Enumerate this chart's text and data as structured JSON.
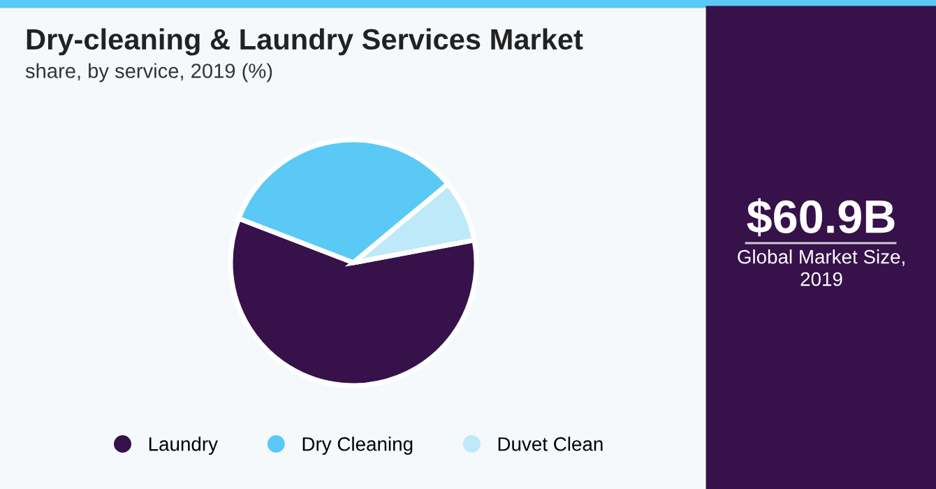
{
  "chart_data": {
    "type": "pie",
    "title": "Dry-cleaning & Laundry Services Market",
    "subtitle": "share, by service, 2019 (%)",
    "categories": [
      "Laundry",
      "Dry Cleaning",
      "Duvet Clean"
    ],
    "values": [
      58.8,
      33.1,
      8.1
    ],
    "colors": [
      "#36114a",
      "#5bc9f6",
      "#bde9f9"
    ],
    "legend": "bottom",
    "annotations": [
      "$60.9B",
      "Global Market Size,\n2019"
    ]
  }
}
